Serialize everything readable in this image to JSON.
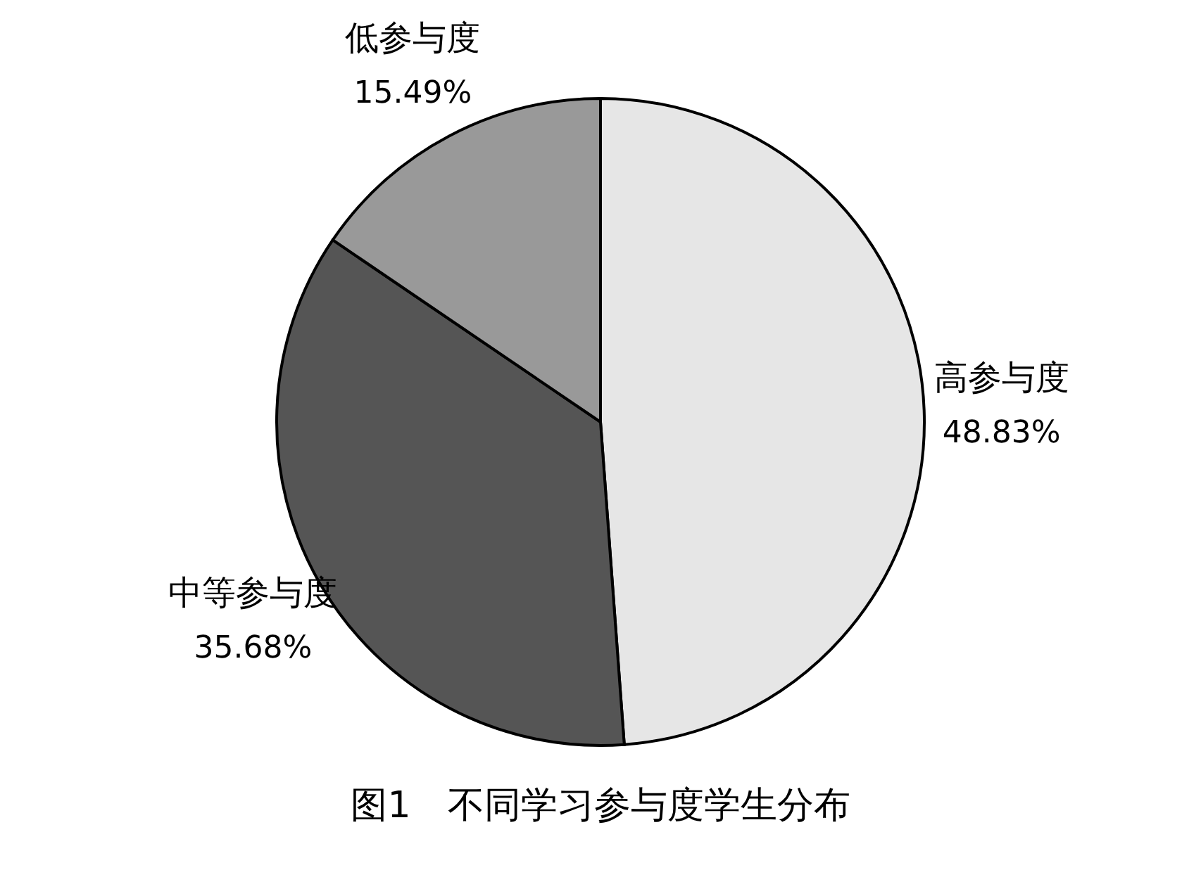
{
  "chart_data": {
    "type": "pie",
    "title": "图1　不同学习参与度学生分布",
    "categories": [
      "高参与度",
      "中等参与度",
      "低参与度"
    ],
    "values": [
      48.83,
      35.68,
      15.49
    ],
    "colors": [
      "#e6e6e6",
      "#555555",
      "#999999"
    ],
    "value_labels": [
      "48.83%",
      "35.68%",
      "15.49%"
    ]
  }
}
